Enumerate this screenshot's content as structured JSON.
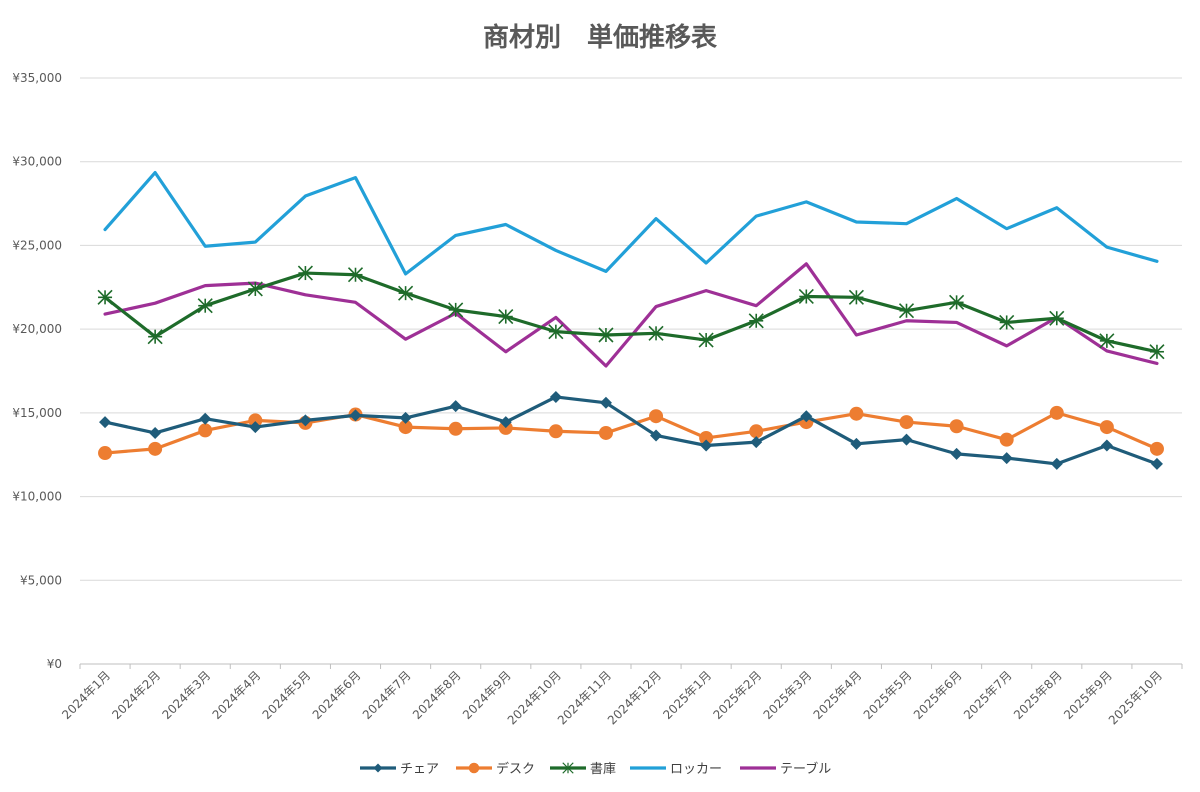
{
  "chart_data": {
    "type": "line",
    "title": "商材別　単価推移表",
    "xlabel": "",
    "ylabel": "",
    "ylim": [
      0,
      35000
    ],
    "yticks": [
      0,
      5000,
      10000,
      15000,
      20000,
      25000,
      30000,
      35000
    ],
    "ytick_labels": [
      "¥0",
      "¥5,000",
      "¥10,000",
      "¥15,000",
      "¥20,000",
      "¥25,000",
      "¥30,000",
      "¥35,000"
    ],
    "grid": true,
    "legend_position": "bottom",
    "categories": [
      "2024年1月",
      "2024年2月",
      "2024年3月",
      "2024年4月",
      "2024年5月",
      "2024年6月",
      "2024年7月",
      "2024年8月",
      "2024年9月",
      "2024年10月",
      "2024年11月",
      "2024年12月",
      "2025年1月",
      "2025年2月",
      "2025年3月",
      "2025年4月",
      "2025年5月",
      "2025年6月",
      "2025年7月",
      "2025年8月",
      "2025年9月",
      "2025年10月"
    ],
    "series": [
      {
        "name": "チェア",
        "color": "#1f5c7a",
        "marker": "diamond",
        "values": [
          14450,
          13800,
          14650,
          14150,
          14550,
          14850,
          14700,
          15400,
          14450,
          15950,
          15600,
          13650,
          13050,
          13250,
          14800,
          13150,
          13400,
          12550,
          12300,
          11950,
          13050,
          11950
        ]
      },
      {
        "name": "デスク",
        "color": "#ed7d31",
        "marker": "circle",
        "values": [
          12600,
          12850,
          13950,
          14550,
          14400,
          14900,
          14150,
          14050,
          14100,
          13900,
          13800,
          14800,
          13500,
          13900,
          14450,
          14950,
          14450,
          14200,
          13400,
          15000,
          14150,
          12850
        ]
      },
      {
        "name": "書庫",
        "color": "#1e6b2a",
        "marker": "star",
        "values": [
          21900,
          19550,
          21400,
          22400,
          23350,
          23250,
          22150,
          21150,
          20750,
          19850,
          19650,
          19750,
          19350,
          20500,
          21950,
          21900,
          21100,
          21600,
          20400,
          20650,
          19300,
          18650
        ]
      },
      {
        "name": "ロッカー",
        "color": "#22a0d8",
        "marker": "none",
        "values": [
          25950,
          29350,
          24950,
          25200,
          27950,
          29050,
          23300,
          25600,
          26250,
          24700,
          23450,
          26600,
          23950,
          26750,
          27600,
          26400,
          26300,
          27800,
          26000,
          27250,
          24900,
          24050
        ]
      },
      {
        "name": "テーブル",
        "color": "#9e3096",
        "marker": "none",
        "values": [
          20900,
          21550,
          22600,
          22750,
          22050,
          21600,
          19400,
          20950,
          18650,
          20700,
          17800,
          21350,
          22300,
          21400,
          23900,
          19650,
          20500,
          20400,
          19000,
          20700,
          18700,
          17950
        ]
      }
    ]
  }
}
